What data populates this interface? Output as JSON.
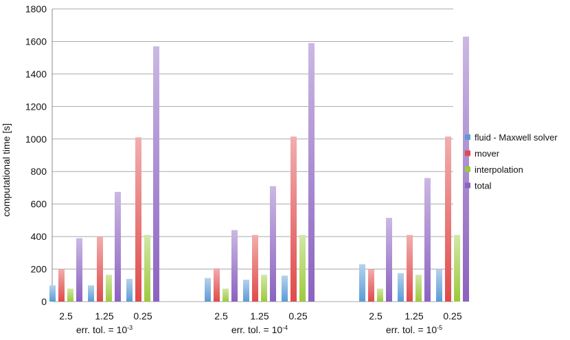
{
  "chart_data": {
    "type": "bar",
    "title": "",
    "xlabel": "",
    "ylabel": "computational time [s]",
    "ylim": [
      0,
      1800
    ],
    "yticks": [
      0,
      200,
      400,
      600,
      800,
      1000,
      1200,
      1400,
      1600,
      1800
    ],
    "grid": true,
    "legend_position": "right",
    "groups": [
      {
        "label_base": "err. tol. = 10",
        "label_exp": "-3",
        "categories": [
          "2.5",
          "1.25",
          "0.25"
        ]
      },
      {
        "label_base": "err. tol. = 10",
        "label_exp": "-4",
        "categories": [
          "2.5",
          "1.25",
          "0.25"
        ]
      },
      {
        "label_base": "err. tol. = 10",
        "label_exp": "-5",
        "categories": [
          "2.5",
          "1.25",
          "0.25"
        ]
      }
    ],
    "series": [
      {
        "name": "fluid - Maxwell solver",
        "color": "#5b9bd5",
        "values": [
          [
            100,
            100,
            140
          ],
          [
            145,
            135,
            160
          ],
          [
            230,
            175,
            200
          ]
        ]
      },
      {
        "name": "mover",
        "color": "#e04a4a",
        "values": [
          [
            200,
            400,
            1010
          ],
          [
            205,
            410,
            1015
          ],
          [
            200,
            410,
            1015
          ]
        ]
      },
      {
        "name": "interpolation",
        "color": "#9dc93c",
        "values": [
          [
            80,
            165,
            410
          ],
          [
            80,
            165,
            410
          ],
          [
            80,
            165,
            410
          ]
        ]
      },
      {
        "name": "total",
        "color": "#8b62c0",
        "values": [
          [
            390,
            675,
            1570
          ],
          [
            440,
            710,
            1590
          ],
          [
            515,
            760,
            1630
          ]
        ]
      }
    ]
  }
}
